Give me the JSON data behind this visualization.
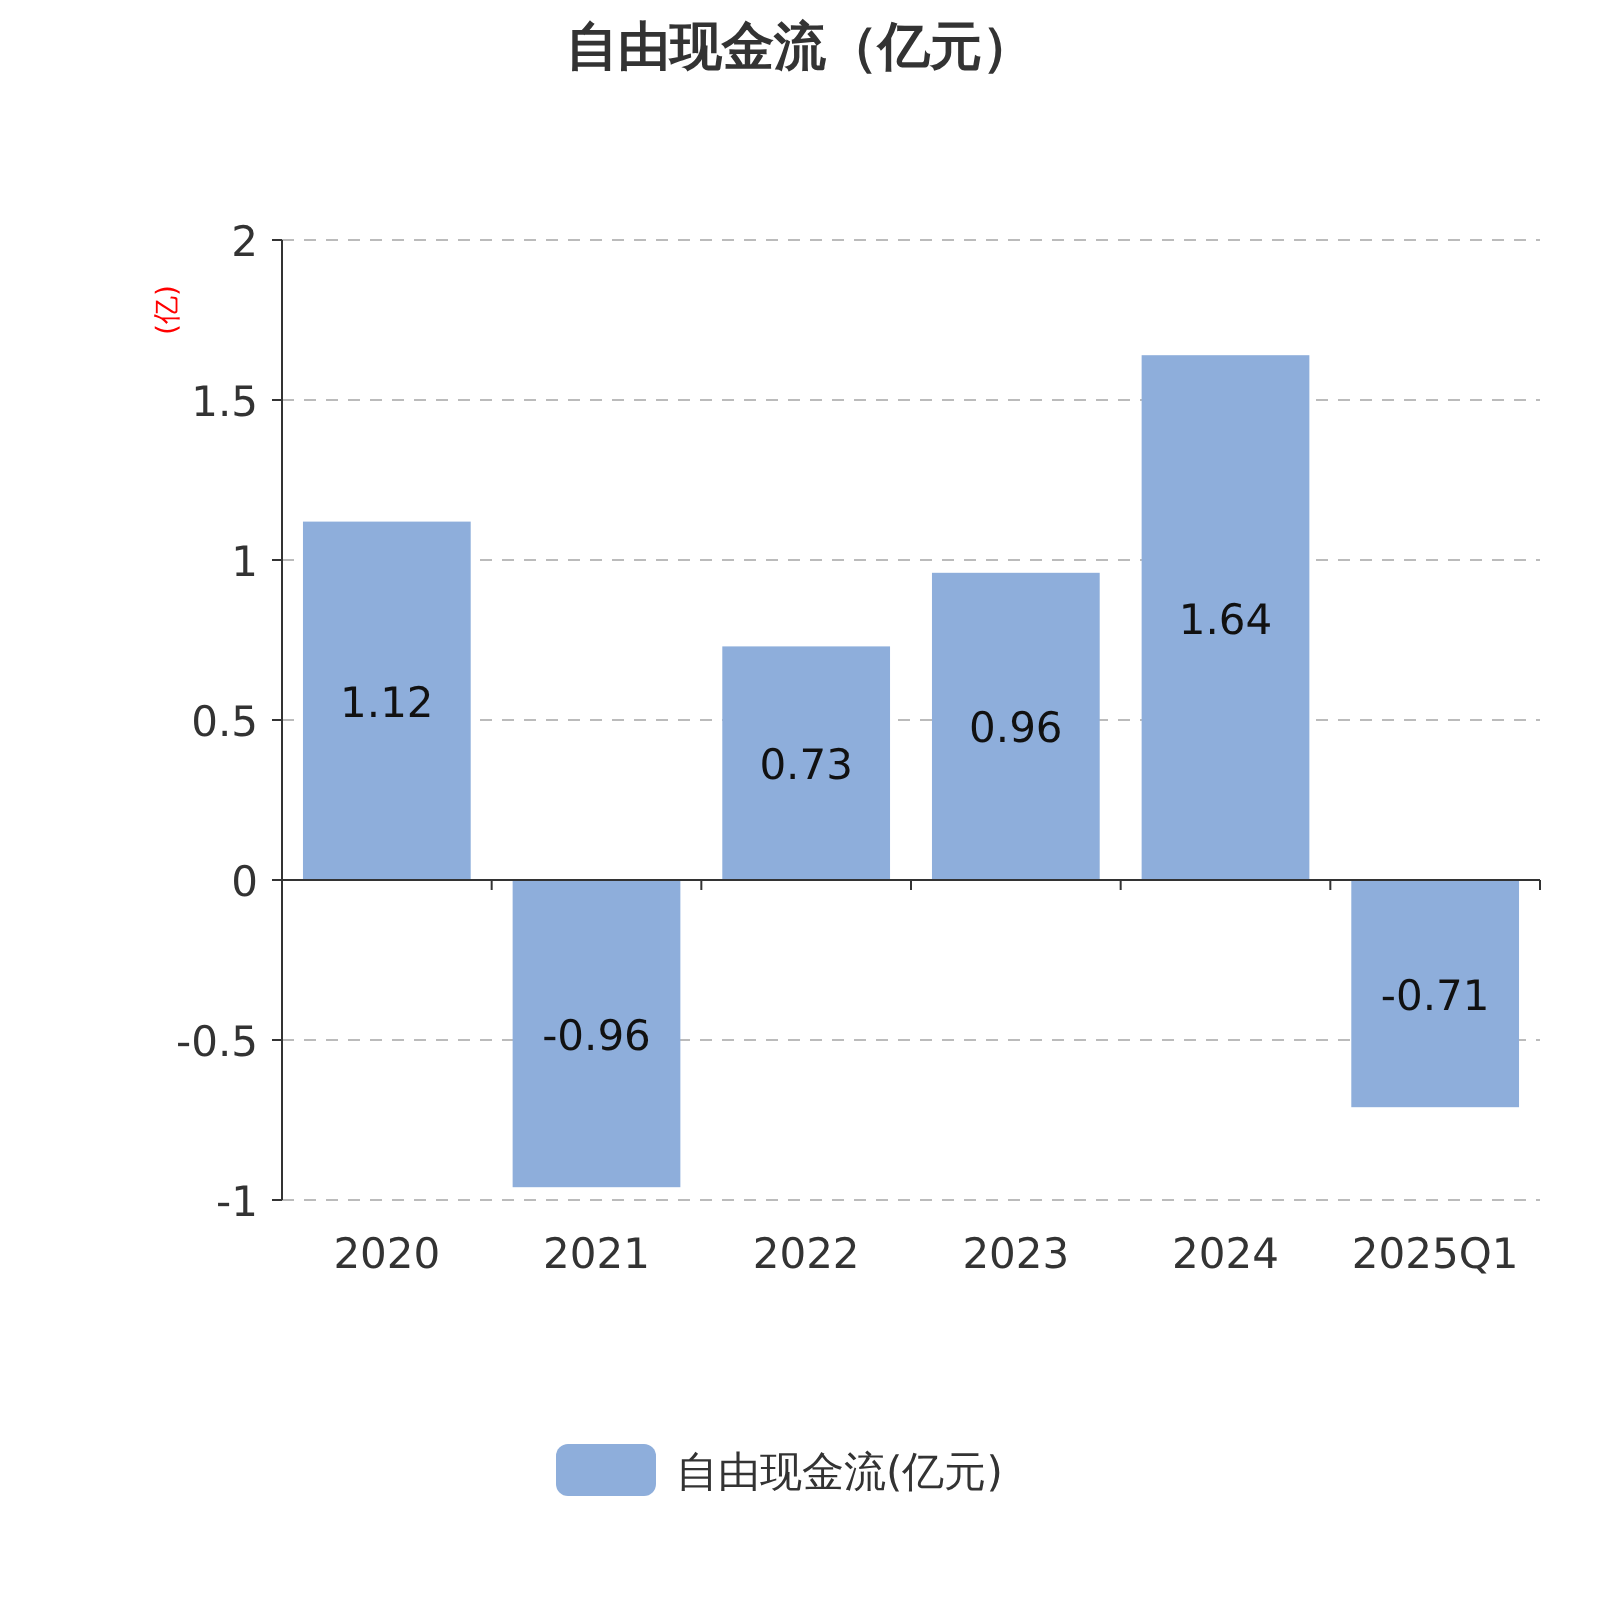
{
  "chart_data": {
    "type": "bar",
    "title": "自由现金流（亿元）",
    "ylabel": "(亿)",
    "categories": [
      "2020",
      "2021",
      "2022",
      "2023",
      "2024",
      "2025Q1"
    ],
    "series": [
      {
        "name": "自由现金流(亿元)",
        "color": "#8eaedb",
        "values": [
          1.12,
          -0.96,
          0.73,
          0.96,
          1.64,
          -0.71
        ]
      }
    ],
    "ylim": [
      -1,
      2
    ],
    "yticks": [
      -1,
      -0.5,
      0,
      0.5,
      1,
      1.5,
      2
    ],
    "grid": "y",
    "legend": "bottom",
    "data_labels": true
  }
}
